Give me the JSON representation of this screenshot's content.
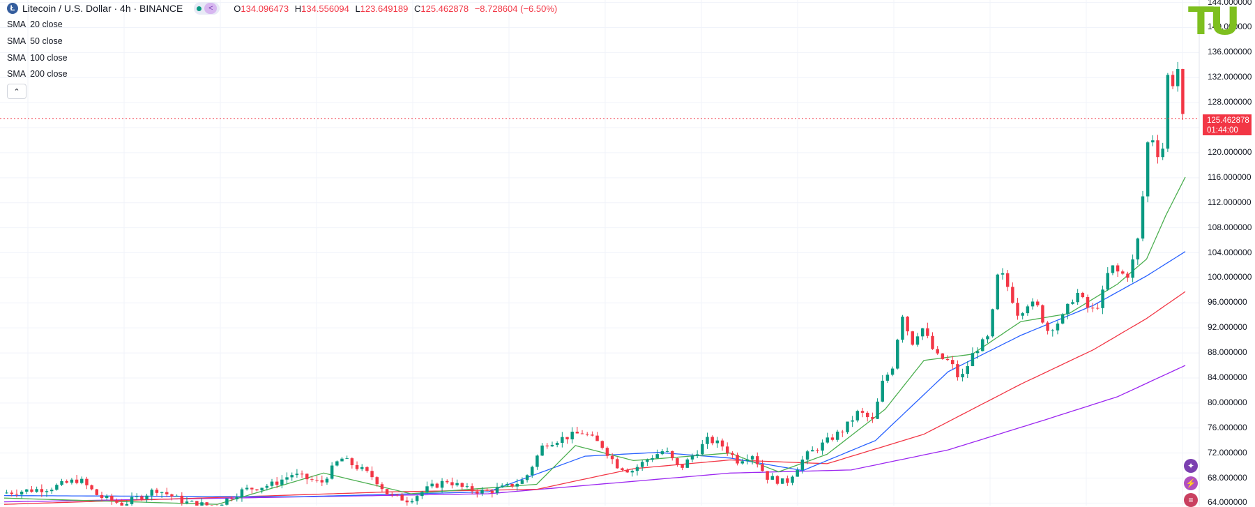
{
  "header": {
    "symbol_icon": "litecoin-icon",
    "symbol_glyph": "Ł",
    "title": "Litecoin / U.S. Dollar · 4h · BINANCE",
    "status": "market-open-dot",
    "ohlc": {
      "o_label": "O",
      "o_value": "134.096473",
      "h_label": "H",
      "h_value": "134.556094",
      "l_label": "L",
      "l_value": "123.649189",
      "c_label": "C",
      "c_value": "125.462878",
      "change": "−8.728604 (−6.50%)"
    }
  },
  "indicators": [
    {
      "name": "SMA",
      "param": "20 close",
      "color": "#4caf50"
    },
    {
      "name": "SMA",
      "param": "50 close",
      "color": "#2962ff"
    },
    {
      "name": "SMA",
      "param": "100 close",
      "color": "#f23645"
    },
    {
      "name": "SMA",
      "param": "200 close",
      "color": "#9c27f0"
    }
  ],
  "collapse_glyph": "⌃",
  "price_axis": {
    "ticks": [
      "144.000000",
      "140.000000",
      "136.000000",
      "132.000000",
      "128.000000",
      "124.000000",
      "120.000000",
      "116.000000",
      "112.000000",
      "108.000000",
      "104.000000",
      "100.000000",
      "96.000000",
      "92.000000",
      "88.000000",
      "84.000000",
      "80.000000",
      "76.000000",
      "72.000000",
      "68.000000",
      "64.000000"
    ],
    "last_price": "125.462878",
    "countdown": "01:44:00"
  },
  "logo_text": "TU",
  "side_tools": [
    {
      "icon": "plus-star-icon",
      "glyph": "✦",
      "color": "#7b3fb0"
    },
    {
      "icon": "lightning-icon",
      "glyph": "⚡",
      "color": "#b04fc0"
    },
    {
      "icon": "flag-icon",
      "glyph": "≡",
      "color": "#c94060"
    }
  ],
  "chart_data": {
    "type": "candlestick",
    "ylim": [
      63.6,
      144.4
    ],
    "grid": true,
    "y_ticks": [
      64,
      68,
      72,
      76,
      80,
      84,
      88,
      92,
      96,
      100,
      104,
      108,
      112,
      116,
      120,
      124,
      128,
      132,
      136,
      140,
      144
    ],
    "candle_count": 236,
    "anchors": [
      [
        0,
        65.6
      ],
      [
        10,
        66.4
      ],
      [
        16,
        67.8
      ],
      [
        20,
        65.1
      ],
      [
        25,
        63.8
      ],
      [
        32,
        66.2
      ],
      [
        38,
        64.1
      ],
      [
        44,
        63.5
      ],
      [
        50,
        66.1
      ],
      [
        56,
        67.0
      ],
      [
        60,
        68.6
      ],
      [
        66,
        67.2
      ],
      [
        70,
        71.2
      ],
      [
        74,
        69.5
      ],
      [
        77,
        68.0
      ],
      [
        80,
        65.2
      ],
      [
        84,
        64.5
      ],
      [
        88,
        66.3
      ],
      [
        92,
        67.6
      ],
      [
        96,
        66.2
      ],
      [
        100,
        65.8
      ],
      [
        104,
        66.5
      ],
      [
        108,
        67.7
      ],
      [
        112,
        73.5
      ],
      [
        116,
        74.4
      ],
      [
        120,
        75.3
      ],
      [
        124,
        73.2
      ],
      [
        127,
        70.1
      ],
      [
        130,
        69.1
      ],
      [
        134,
        71.3
      ],
      [
        137,
        72.5
      ],
      [
        140,
        69.4
      ],
      [
        143,
        71.8
      ],
      [
        146,
        74.2
      ],
      [
        149,
        73.1
      ],
      [
        152,
        70.8
      ],
      [
        155,
        71.9
      ],
      [
        158,
        68.2
      ],
      [
        162,
        67.2
      ],
      [
        166,
        71.5
      ],
      [
        170,
        73.6
      ],
      [
        174,
        75.8
      ],
      [
        177,
        78.6
      ],
      [
        180,
        77.1
      ],
      [
        182,
        83.3
      ],
      [
        184,
        85.8
      ],
      [
        186,
        94.5
      ],
      [
        188,
        89.5
      ],
      [
        190,
        92.3
      ],
      [
        193,
        87.5
      ],
      [
        196,
        86.5
      ],
      [
        198,
        83.5
      ],
      [
        201,
        88.4
      ],
      [
        204,
        90.5
      ],
      [
        206,
        101.5
      ],
      [
        208,
        98.3
      ],
      [
        210,
        94.2
      ],
      [
        212,
        96.0
      ],
      [
        214,
        95.3
      ],
      [
        216,
        91.6
      ],
      [
        219,
        93.4
      ],
      [
        222,
        97.8
      ],
      [
        225,
        94.5
      ],
      [
        227,
        96.2
      ],
      [
        229,
        102.0
      ],
      [
        231,
        100.6
      ],
      [
        233,
        100.5
      ],
      [
        235,
        107.0
      ],
      [
        237,
        123.5
      ],
      [
        238,
        122.0
      ],
      [
        239,
        119.5
      ],
      [
        240,
        121.0
      ],
      [
        241,
        133.5
      ],
      [
        242,
        131.0
      ],
      [
        243,
        133.5
      ],
      [
        244,
        125.5
      ]
    ],
    "sma20_anchors": [
      [
        0,
        64.8
      ],
      [
        44,
        63.8
      ],
      [
        66,
        68.8
      ],
      [
        84,
        65.5
      ],
      [
        110,
        67.0
      ],
      [
        118,
        73.2
      ],
      [
        130,
        70.8
      ],
      [
        150,
        72.0
      ],
      [
        160,
        69.0
      ],
      [
        170,
        71.8
      ],
      [
        182,
        79.0
      ],
      [
        190,
        86.8
      ],
      [
        200,
        87.8
      ],
      [
        210,
        93.0
      ],
      [
        220,
        94.3
      ],
      [
        230,
        99.0
      ],
      [
        236,
        103.0
      ],
      [
        240,
        110.0
      ],
      [
        244,
        116.1
      ]
    ],
    "sma50_anchors": [
      [
        0,
        65.2
      ],
      [
        60,
        65.0
      ],
      [
        100,
        65.8
      ],
      [
        120,
        71.5
      ],
      [
        135,
        72.1
      ],
      [
        150,
        71.2
      ],
      [
        165,
        69.2
      ],
      [
        180,
        74.0
      ],
      [
        195,
        85.0
      ],
      [
        210,
        90.8
      ],
      [
        225,
        95.6
      ],
      [
        236,
        100.3
      ],
      [
        244,
        104.2
      ]
    ],
    "sma100_anchors": [
      [
        0,
        63.8
      ],
      [
        80,
        65.8
      ],
      [
        110,
        66.2
      ],
      [
        130,
        69.5
      ],
      [
        150,
        70.9
      ],
      [
        170,
        70.3
      ],
      [
        190,
        75.0
      ],
      [
        210,
        83.0
      ],
      [
        225,
        88.5
      ],
      [
        236,
        93.5
      ],
      [
        244,
        97.8
      ]
    ],
    "sma200_anchors": [
      [
        0,
        64.2
      ],
      [
        100,
        65.5
      ],
      [
        150,
        68.8
      ],
      [
        175,
        69.3
      ],
      [
        195,
        72.5
      ],
      [
        215,
        77.3
      ],
      [
        230,
        81.0
      ],
      [
        244,
        86.0
      ]
    ]
  }
}
